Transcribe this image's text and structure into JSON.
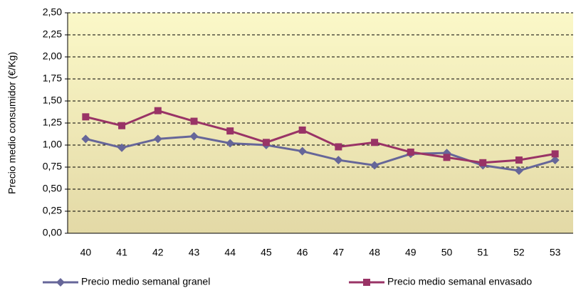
{
  "chart_data": {
    "type": "line",
    "y_label": "Precio medio consumidor (€/Kg)",
    "categories": [
      "40",
      "41",
      "42",
      "43",
      "44",
      "45",
      "46",
      "47",
      "48",
      "49",
      "50",
      "51",
      "52",
      "53"
    ],
    "series": [
      {
        "name": "Precio medio semanal granel",
        "color": "#666699",
        "marker": "diamond",
        "values": [
          1.07,
          0.97,
          1.07,
          1.1,
          1.02,
          1.0,
          0.93,
          0.83,
          0.77,
          0.9,
          0.91,
          0.77,
          0.71,
          0.83
        ]
      },
      {
        "name": "Precio medio semanal envasado",
        "color": "#993366",
        "marker": "square",
        "values": [
          1.32,
          1.22,
          1.39,
          1.27,
          1.16,
          1.03,
          1.17,
          0.98,
          1.03,
          0.92,
          0.86,
          0.8,
          0.83,
          0.9
        ]
      }
    ],
    "ylim": [
      0,
      2.5
    ],
    "yticks": [
      {
        "value": 0,
        "label": "0,00"
      },
      {
        "value": 0.25,
        "label": "0,25"
      },
      {
        "value": 0.5,
        "label": "0,50"
      },
      {
        "value": 0.75,
        "label": "0,75"
      },
      {
        "value": 1,
        "label": "1,00"
      },
      {
        "value": 1.25,
        "label": "1,25"
      },
      {
        "value": 1.5,
        "label": "1,50"
      },
      {
        "value": 1.75,
        "label": "1,75"
      },
      {
        "value": 2,
        "label": "2,00"
      },
      {
        "value": 2.25,
        "label": "2,25"
      },
      {
        "value": 2.5,
        "label": "2,50"
      }
    ],
    "grid": true
  }
}
